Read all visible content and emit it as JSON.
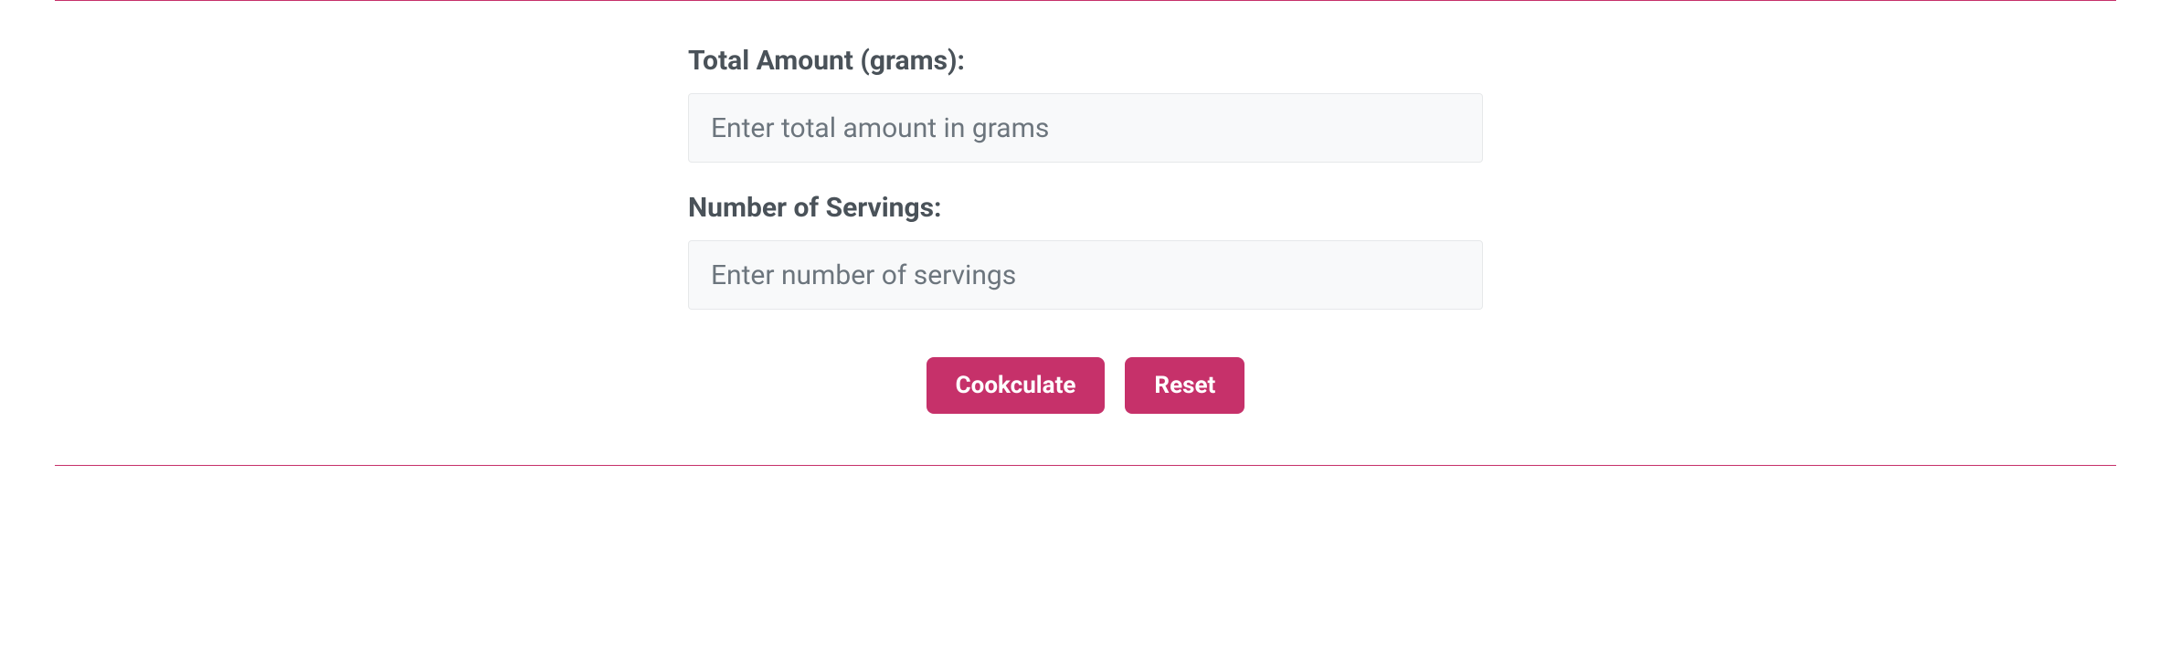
{
  "colors": {
    "accent": "#c6316a",
    "hr": "#c6316a",
    "label_text": "#4a5259",
    "input_bg": "#f8f9fa",
    "input_border": "#e6e8ea",
    "placeholder": "#6c757d",
    "button_bg": "#c6316a",
    "button_text": "#ffffff",
    "page_bg": "#ffffff"
  },
  "form": {
    "total_amount": {
      "label": "Total Amount (grams):",
      "placeholder": "Enter total amount in grams",
      "value": ""
    },
    "servings": {
      "label": "Number of Servings:",
      "placeholder": "Enter number of servings",
      "value": ""
    }
  },
  "buttons": {
    "calculate_label": "Cookculate",
    "reset_label": "Reset"
  }
}
